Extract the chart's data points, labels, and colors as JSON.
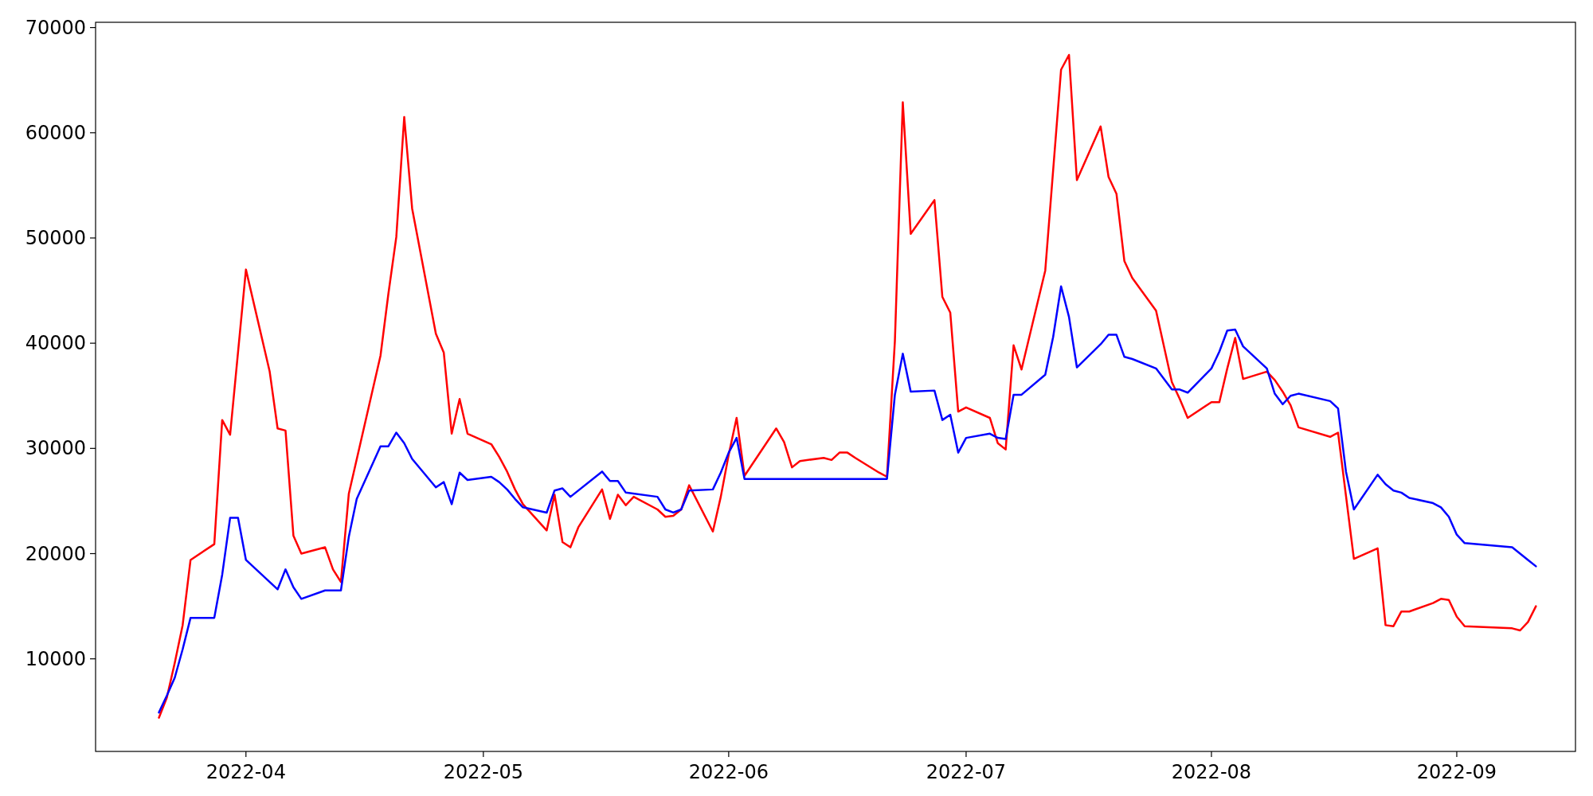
{
  "chart_data": {
    "type": "line",
    "xlim": [
      "2022-03-13",
      "2022-09-16"
    ],
    "ylim": [
      1200,
      70500
    ],
    "xticks": [
      "2022-04",
      "2022-05",
      "2022-06",
      "2022-07",
      "2022-08",
      "2022-09"
    ],
    "yticks": [
      10000,
      20000,
      30000,
      40000,
      50000,
      60000,
      70000
    ],
    "series": [
      {
        "color": "#ff0000",
        "x": [
          "2022-03-21",
          "2022-03-22",
          "2022-03-23",
          "2022-03-24",
          "2022-03-25",
          "2022-03-28",
          "2022-03-29",
          "2022-03-30",
          "2022-04-01",
          "2022-04-04",
          "2022-04-05",
          "2022-04-06",
          "2022-04-07",
          "2022-04-08",
          "2022-04-11",
          "2022-04-12",
          "2022-04-13",
          "2022-04-14",
          "2022-04-18",
          "2022-04-19",
          "2022-04-20",
          "2022-04-21",
          "2022-04-22",
          "2022-04-25",
          "2022-04-26",
          "2022-04-27",
          "2022-04-28",
          "2022-04-29",
          "2022-05-02",
          "2022-05-03",
          "2022-05-04",
          "2022-05-05",
          "2022-05-06",
          "2022-05-09",
          "2022-05-10",
          "2022-05-11",
          "2022-05-12",
          "2022-05-13",
          "2022-05-16",
          "2022-05-17",
          "2022-05-18",
          "2022-05-19",
          "2022-05-20",
          "2022-05-23",
          "2022-05-24",
          "2022-05-25",
          "2022-05-26",
          "2022-05-27",
          "2022-05-30",
          "2022-05-31",
          "2022-06-01",
          "2022-06-02",
          "2022-06-03",
          "2022-06-07",
          "2022-06-08",
          "2022-06-09",
          "2022-06-10",
          "2022-06-13",
          "2022-06-14",
          "2022-06-15",
          "2022-06-16",
          "2022-06-17",
          "2022-06-20",
          "2022-06-21",
          "2022-06-22",
          "2022-06-23",
          "2022-06-24",
          "2022-06-27",
          "2022-06-28",
          "2022-06-29",
          "2022-06-30",
          "2022-07-01",
          "2022-07-04",
          "2022-07-05",
          "2022-07-06",
          "2022-07-07",
          "2022-07-08",
          "2022-07-11",
          "2022-07-13",
          "2022-07-14",
          "2022-07-15",
          "2022-07-18",
          "2022-07-19",
          "2022-07-20",
          "2022-07-21",
          "2022-07-22",
          "2022-07-25",
          "2022-07-27",
          "2022-07-28",
          "2022-07-29",
          "2022-08-01",
          "2022-08-02",
          "2022-08-03",
          "2022-08-04",
          "2022-08-05",
          "2022-08-08",
          "2022-08-09",
          "2022-08-10",
          "2022-08-11",
          "2022-08-12",
          "2022-08-16",
          "2022-08-17",
          "2022-08-18",
          "2022-08-19",
          "2022-08-22",
          "2022-08-23",
          "2022-08-24",
          "2022-08-25",
          "2022-08-26",
          "2022-08-29",
          "2022-08-30",
          "2022-08-31",
          "2022-09-01",
          "2022-09-02",
          "2022-09-08",
          "2022-09-09",
          "2022-09-10",
          "2022-09-11"
        ],
        "values": [
          4400,
          6300,
          9600,
          13200,
          19400,
          20900,
          32700,
          31300,
          47000,
          37300,
          31900,
          31700,
          21700,
          20000,
          20600,
          18500,
          17300,
          25700,
          38800,
          44700,
          50100,
          61500,
          52800,
          40900,
          39100,
          31400,
          34700,
          31400,
          30400,
          29200,
          27800,
          26100,
          24700,
          22200,
          25600,
          21100,
          20600,
          22500,
          26100,
          23300,
          25600,
          24600,
          25400,
          24200,
          23500,
          23600,
          24200,
          26500,
          22100,
          25400,
          29400,
          32900,
          27400,
          31900,
          30600,
          28200,
          28800,
          29100,
          28900,
          29600,
          29600,
          29100,
          27700,
          27300,
          40200,
          62900,
          50400,
          53600,
          44400,
          42900,
          33500,
          33900,
          32900,
          30500,
          29900,
          39800,
          37500,
          46900,
          66000,
          67400,
          55500,
          60600,
          55800,
          54200,
          47800,
          46200,
          43100,
          36300,
          34700,
          32900,
          34400,
          34400,
          37600,
          40500,
          36600,
          37300,
          36500,
          35400,
          34100,
          32000,
          31100,
          31500,
          25500,
          19500,
          20500,
          13200,
          13100,
          14500,
          14500,
          15300,
          15700,
          15600,
          14000,
          13100,
          12900,
          12700,
          13500,
          15000
        ]
      },
      {
        "color": "#0000ff",
        "x": [
          "2022-03-21",
          "2022-03-22",
          "2022-03-23",
          "2022-03-24",
          "2022-03-25",
          "2022-03-28",
          "2022-03-29",
          "2022-03-30",
          "2022-03-31",
          "2022-04-01",
          "2022-04-04",
          "2022-04-05",
          "2022-04-06",
          "2022-04-07",
          "2022-04-08",
          "2022-04-11",
          "2022-04-12",
          "2022-04-13",
          "2022-04-14",
          "2022-04-15",
          "2022-04-18",
          "2022-04-19",
          "2022-04-20",
          "2022-04-21",
          "2022-04-22",
          "2022-04-25",
          "2022-04-26",
          "2022-04-27",
          "2022-04-28",
          "2022-04-29",
          "2022-05-02",
          "2022-05-03",
          "2022-05-04",
          "2022-05-05",
          "2022-05-06",
          "2022-05-09",
          "2022-05-10",
          "2022-05-11",
          "2022-05-12",
          "2022-05-16",
          "2022-05-17",
          "2022-05-18",
          "2022-05-19",
          "2022-05-23",
          "2022-05-24",
          "2022-05-25",
          "2022-05-26",
          "2022-05-27",
          "2022-05-30",
          "2022-05-31",
          "2022-06-01",
          "2022-06-02",
          "2022-06-03",
          "2022-06-21",
          "2022-06-22",
          "2022-06-23",
          "2022-06-24",
          "2022-06-27",
          "2022-06-28",
          "2022-06-29",
          "2022-06-30",
          "2022-07-01",
          "2022-07-04",
          "2022-07-05",
          "2022-07-06",
          "2022-07-07",
          "2022-07-08",
          "2022-07-11",
          "2022-07-12",
          "2022-07-13",
          "2022-07-14",
          "2022-07-15",
          "2022-07-18",
          "2022-07-19",
          "2022-07-20",
          "2022-07-21",
          "2022-07-22",
          "2022-07-25",
          "2022-07-26",
          "2022-07-27",
          "2022-07-28",
          "2022-07-29",
          "2022-08-01",
          "2022-08-02",
          "2022-08-03",
          "2022-08-04",
          "2022-08-05",
          "2022-08-08",
          "2022-08-09",
          "2022-08-10",
          "2022-08-11",
          "2022-08-12",
          "2022-08-16",
          "2022-08-17",
          "2022-08-18",
          "2022-08-19",
          "2022-08-22",
          "2022-08-23",
          "2022-08-24",
          "2022-08-25",
          "2022-08-26",
          "2022-08-29",
          "2022-08-30",
          "2022-08-31",
          "2022-09-01",
          "2022-09-02",
          "2022-09-08",
          "2022-09-09",
          "2022-09-10",
          "2022-09-11"
        ],
        "values": [
          4900,
          6500,
          8200,
          10900,
          13900,
          13900,
          18000,
          23400,
          23400,
          19400,
          17300,
          16600,
          18500,
          16800,
          15700,
          16500,
          16500,
          16500,
          21600,
          25200,
          30200,
          30200,
          31500,
          30500,
          29000,
          26300,
          26800,
          24700,
          27700,
          27000,
          27300,
          26800,
          26100,
          25200,
          24400,
          23900,
          26000,
          26200,
          25400,
          27800,
          26900,
          26900,
          25800,
          25400,
          24200,
          23900,
          24200,
          26000,
          26100,
          27700,
          29600,
          31000,
          27100,
          27100,
          35100,
          39000,
          35400,
          35500,
          32700,
          33200,
          29600,
          31000,
          31400,
          31000,
          30900,
          35100,
          35100,
          37000,
          40600,
          45400,
          42500,
          37700,
          39900,
          40800,
          40800,
          38700,
          38500,
          37600,
          36600,
          35600,
          35600,
          35300,
          37600,
          39200,
          41200,
          41300,
          39700,
          37600,
          35200,
          34200,
          35000,
          35200,
          34500,
          33800,
          27800,
          24200,
          27500,
          26600,
          26000,
          25800,
          25300,
          24800,
          24400,
          23500,
          21800,
          21000,
          20600,
          20000,
          19400,
          18800
        ]
      }
    ]
  }
}
